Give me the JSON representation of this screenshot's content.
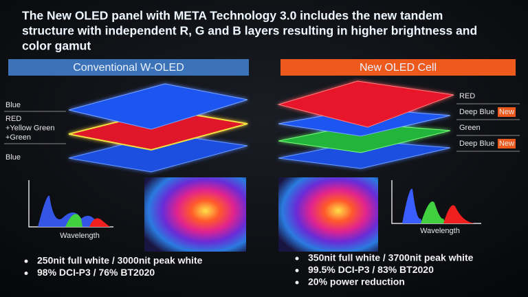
{
  "title": [
    "The New OLED panel with META Technology 3.0 includes the new tandem",
    "structure with independent R, G and B layers resulting in higher brightness and",
    "color gamut"
  ],
  "left": {
    "header": "Conventional W-OLED",
    "layer_labels": [
      [
        "Blue"
      ],
      [
        "RED",
        "+Yellow Green",
        "+Green"
      ],
      [
        "Blue"
      ]
    ],
    "spectrum_label": "Wavelength",
    "bullets": [
      "250nit full white / 3000nit peak white",
      "98% DCI-P3 / 76% BT2020"
    ]
  },
  "right": {
    "header": "New OLED Cell",
    "layer_labels": [
      {
        "text": "RED"
      },
      {
        "text": "Deep Blue",
        "badge": "New"
      },
      {
        "text": "Green"
      },
      {
        "text": "Deep Blue",
        "badge": "New"
      }
    ],
    "spectrum_label": "Wavelength",
    "bullets": [
      "350nit full white / 3700nit peak white",
      "99.5% DCI-P3 / 83% BT2020",
      "20% power reduction"
    ]
  }
}
